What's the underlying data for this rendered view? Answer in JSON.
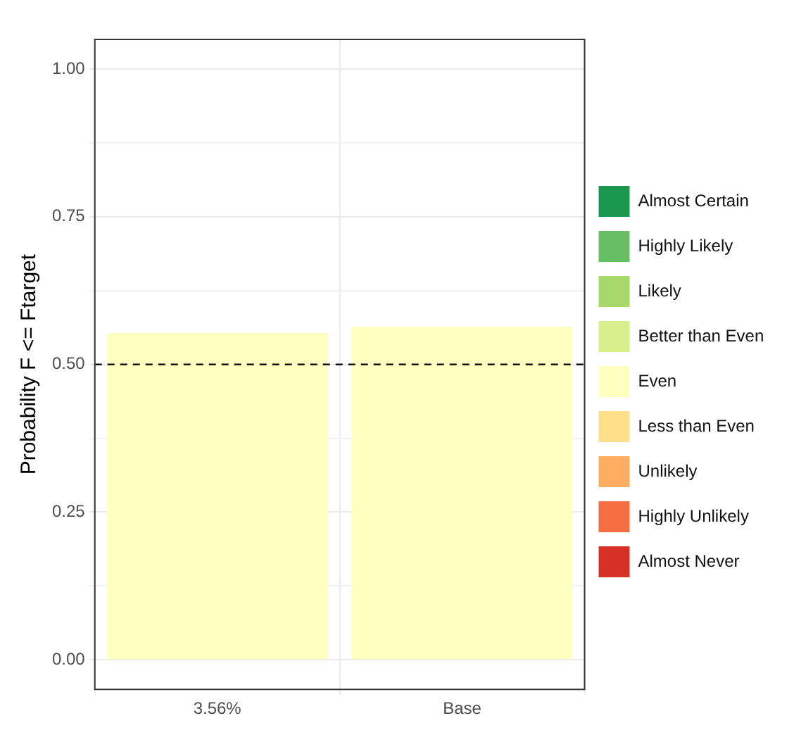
{
  "chart_data": {
    "type": "bar",
    "ylabel": "Probability F <= Ftarget",
    "categories": [
      "3.56%",
      "Base"
    ],
    "series": [
      {
        "name": "Almost Certain",
        "color": "#1a9850",
        "values": [
          null,
          null
        ]
      },
      {
        "name": "Highly Likely",
        "color": "#66bd63",
        "values": [
          null,
          null
        ]
      },
      {
        "name": "Likely",
        "color": "#a6d96a",
        "values": [
          null,
          null
        ]
      },
      {
        "name": "Better than Even",
        "color": "#d9ef8b",
        "values": [
          null,
          null
        ]
      },
      {
        "name": "Even",
        "color": "#ffffbf",
        "values": [
          0.553,
          0.564
        ]
      },
      {
        "name": "Less than Even",
        "color": "#fee08b",
        "values": [
          null,
          null
        ]
      },
      {
        "name": "Unlikely",
        "color": "#fdae61",
        "values": [
          null,
          null
        ]
      },
      {
        "name": "Highly Unlikely",
        "color": "#f46d43",
        "values": [
          null,
          null
        ]
      },
      {
        "name": "Almost Never",
        "color": "#d73027",
        "values": [
          null,
          null
        ]
      }
    ],
    "ylim": [
      -0.05,
      1.05
    ],
    "yticks": [
      {
        "value": 0,
        "label": "0.00"
      },
      {
        "value": 0.125,
        "label": null
      },
      {
        "value": 0.25,
        "label": "0.25"
      },
      {
        "value": 0.375,
        "label": null
      },
      {
        "value": 0.5,
        "label": "0.50"
      },
      {
        "value": 0.625,
        "label": null
      },
      {
        "value": 0.75,
        "label": "0.75"
      },
      {
        "value": 0.875,
        "label": null
      },
      {
        "value": 1,
        "label": "1.00"
      }
    ],
    "ref_lines": [
      {
        "axis": "y",
        "value": 0.5,
        "color": "#000000",
        "line_style": "dashed"
      }
    ],
    "grid": true,
    "legend": "right"
  }
}
